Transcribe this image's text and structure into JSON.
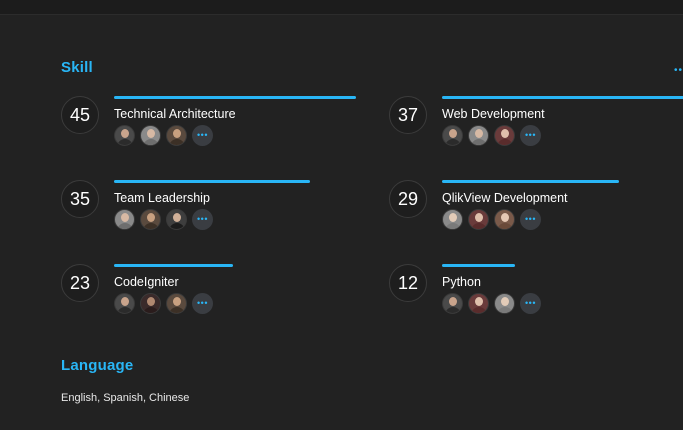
{
  "colors": {
    "accent": "#29b6f6",
    "background": "#222222"
  },
  "skill_section": {
    "title": "Skill",
    "more_icon": "more-horizontal-icon"
  },
  "skills": [
    {
      "count": "45",
      "name": "Technical Architecture",
      "level": 1.0,
      "people": [
        {
          "bg": "#4a4a4a",
          "skin": "#c9a48c",
          "shirt": "#2b2b2b"
        },
        {
          "bg": "#8a8a8a",
          "skin": "#d7b9a4",
          "shirt": "#6e6e6e"
        },
        {
          "bg": "#5a4a3e",
          "skin": "#c8a080",
          "shirt": "#3c3026"
        }
      ]
    },
    {
      "count": "37",
      "name": "Web Development",
      "level": 1.0,
      "people": [
        {
          "bg": "#4a4a4a",
          "skin": "#c9a48c",
          "shirt": "#2b2b2b"
        },
        {
          "bg": "#8a8a8a",
          "skin": "#d7b9a4",
          "shirt": "#6e6e6e"
        },
        {
          "bg": "#6a3b3b",
          "skin": "#e0c0ac",
          "shirt": "#5a2c2c"
        }
      ]
    },
    {
      "count": "35",
      "name": "Team Leadership",
      "level": 0.81,
      "people": [
        {
          "bg": "#8a8a8a",
          "skin": "#d7b9a4",
          "shirt": "#6e6e6e"
        },
        {
          "bg": "#5a4a3e",
          "skin": "#c8a080",
          "shirt": "#3c3026"
        },
        {
          "bg": "#3e3e3e",
          "skin": "#d0b098",
          "shirt": "#1c1c1c"
        }
      ]
    },
    {
      "count": "29",
      "name": "QlikView Development",
      "level": 0.73,
      "people": [
        {
          "bg": "#8a8a8a",
          "skin": "#e2cbb8",
          "shirt": "#7a7a7a"
        },
        {
          "bg": "#6a3b3b",
          "skin": "#e0c0ac",
          "shirt": "#5a2c2c"
        },
        {
          "bg": "#7a5a4a",
          "skin": "#e6c8b4",
          "shirt": "#6a4a3a"
        }
      ]
    },
    {
      "count": "23",
      "name": "CodeIgniter",
      "level": 0.49,
      "people": [
        {
          "bg": "#4a4a4a",
          "skin": "#c9a48c",
          "shirt": "#2b2b2b"
        },
        {
          "bg": "#3a2a2a",
          "skin": "#b08870",
          "shirt": "#2a1c1c"
        },
        {
          "bg": "#5a4a3e",
          "skin": "#c8a080",
          "shirt": "#3c3026"
        }
      ]
    },
    {
      "count": "12",
      "name": "Python",
      "level": 0.3,
      "people": [
        {
          "bg": "#4a4a4a",
          "skin": "#c9a48c",
          "shirt": "#2b2b2b"
        },
        {
          "bg": "#6a3b3b",
          "skin": "#e0c0ac",
          "shirt": "#5a2c2c"
        },
        {
          "bg": "#8a8a8a",
          "skin": "#e2cbb8",
          "shirt": "#7a7a7a"
        }
      ]
    }
  ],
  "people_more_icon": "more-horizontal-icon",
  "language_section": {
    "title": "Language",
    "value": "English, Spanish, Chinese"
  }
}
